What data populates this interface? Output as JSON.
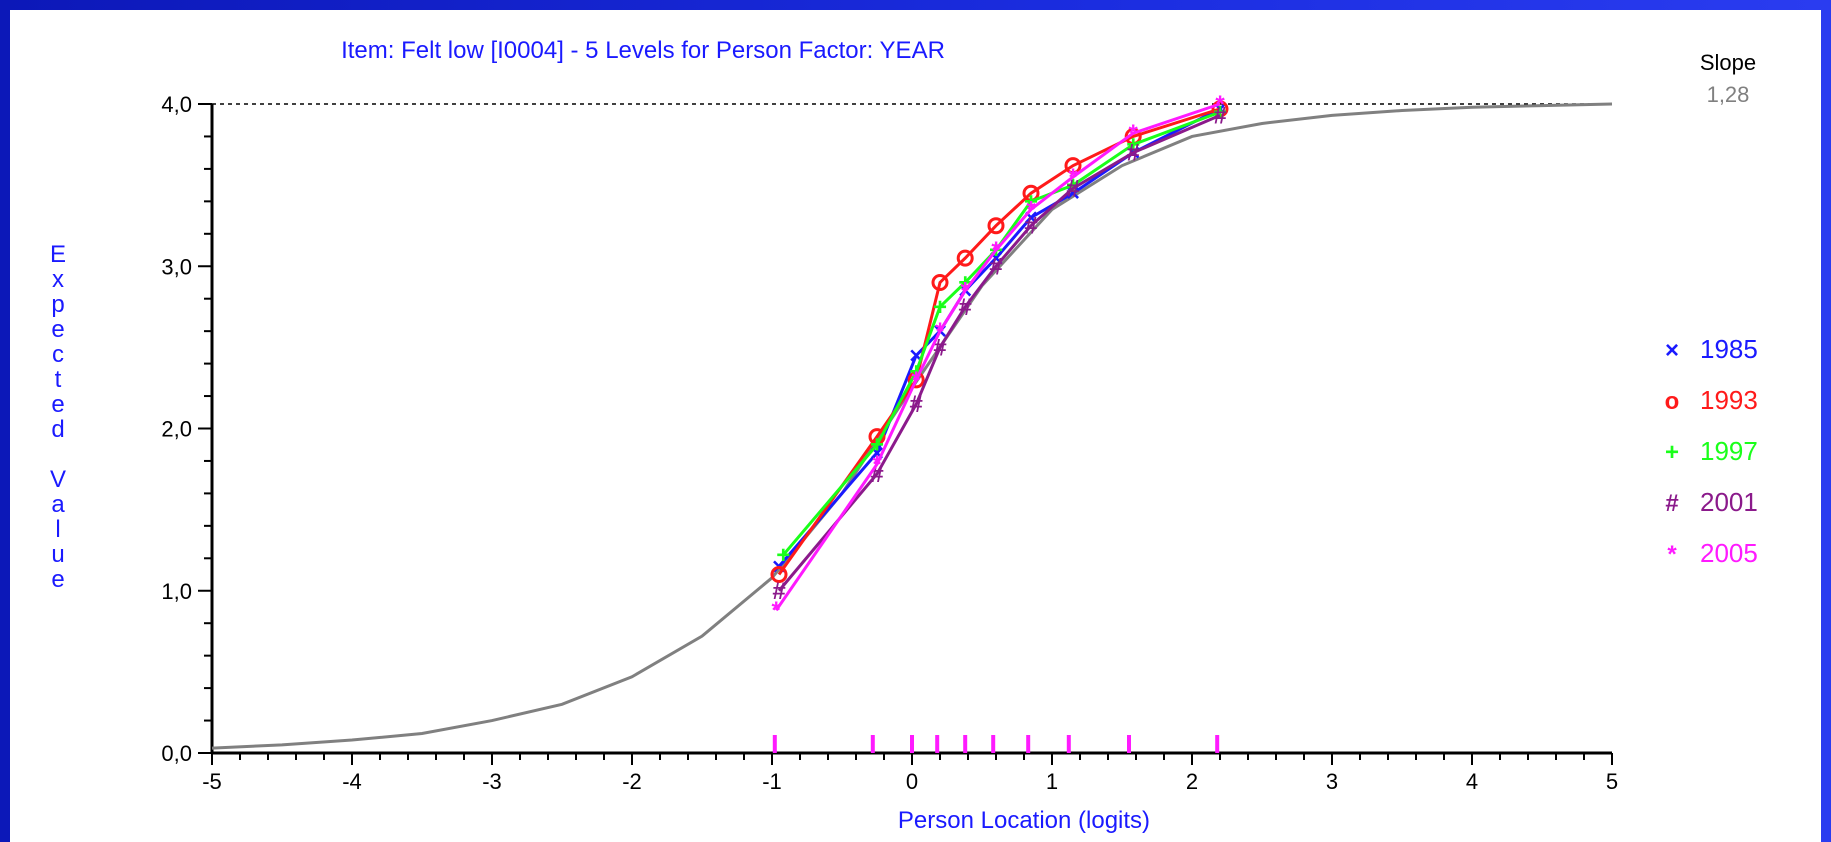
{
  "chart_data": {
    "type": "line",
    "title": "Item: Felt low [I0004] - 5 Levels for Person Factor: YEAR",
    "xlabel": "Person Location (logits)",
    "ylabel": "Expected Value",
    "xlim": [
      -5,
      5
    ],
    "ylim": [
      0,
      4
    ],
    "xticks": [
      "-5",
      "-4",
      "-3",
      "-2",
      "-1",
      "0",
      "1",
      "2",
      "3",
      "4",
      "5"
    ],
    "yticks": [
      "0,0",
      "1,0",
      "2,0",
      "3,0",
      "4,0"
    ],
    "slope_label": "Slope",
    "slope_value": "1,28",
    "max_line": 4.0,
    "curve": {
      "color": "#808080",
      "x": [
        -5,
        -4.5,
        -4,
        -3.5,
        -3,
        -2.5,
        -2,
        -1.5,
        -1,
        -0.5,
        0,
        0.5,
        1,
        1.5,
        2,
        2.5,
        3,
        3.5,
        4,
        4.5,
        5
      ],
      "y": [
        0.03,
        0.05,
        0.08,
        0.12,
        0.2,
        0.3,
        0.47,
        0.72,
        1.08,
        1.6,
        2.25,
        2.88,
        3.35,
        3.62,
        3.8,
        3.88,
        3.93,
        3.96,
        3.98,
        3.99,
        4.0
      ]
    },
    "series": [
      {
        "name": "1985",
        "color": "#1a1aff",
        "marker": "×",
        "x": [
          -0.95,
          -0.25,
          0.03,
          0.2,
          0.38,
          0.6,
          0.85,
          1.15,
          1.58,
          2.2
        ],
        "y": [
          1.15,
          1.85,
          2.45,
          2.6,
          2.85,
          3.05,
          3.3,
          3.45,
          3.7,
          3.97
        ]
      },
      {
        "name": "1993",
        "color": "#ff1a1a",
        "marker": "o",
        "x": [
          -0.95,
          -0.25,
          0.03,
          0.2,
          0.38,
          0.6,
          0.85,
          1.15,
          1.58,
          2.2
        ],
        "y": [
          1.1,
          1.95,
          2.3,
          2.9,
          3.05,
          3.25,
          3.45,
          3.62,
          3.8,
          3.97
        ]
      },
      {
        "name": "1997",
        "color": "#1aff1a",
        "marker": "+",
        "x": [
          -0.92,
          -0.25,
          0.03,
          0.2,
          0.38,
          0.6,
          0.85,
          1.15,
          1.58,
          2.2
        ],
        "y": [
          1.22,
          1.9,
          2.35,
          2.75,
          2.9,
          3.1,
          3.4,
          3.5,
          3.75,
          3.95
        ]
      },
      {
        "name": "2001",
        "color": "#8b1a8b",
        "marker": "#",
        "x": [
          -0.95,
          -0.25,
          0.03,
          0.2,
          0.38,
          0.6,
          0.85,
          1.15,
          1.58,
          2.2
        ],
        "y": [
          1.0,
          1.72,
          2.15,
          2.5,
          2.75,
          3.0,
          3.25,
          3.48,
          3.7,
          3.93
        ]
      },
      {
        "name": "2005",
        "color": "#ff1aff",
        "marker": "*",
        "x": [
          -0.97,
          -0.25,
          0.03,
          0.2,
          0.38,
          0.6,
          0.85,
          1.15,
          1.58,
          2.2
        ],
        "y": [
          0.88,
          1.78,
          2.3,
          2.6,
          2.85,
          3.1,
          3.35,
          3.55,
          3.82,
          4.0
        ]
      }
    ],
    "rug": {
      "color": "#ff1aff",
      "x": [
        -0.98,
        -0.28,
        0.0,
        0.18,
        0.38,
        0.58,
        0.83,
        1.12,
        1.55,
        2.18
      ]
    },
    "grid": false,
    "legend_position": "right"
  }
}
